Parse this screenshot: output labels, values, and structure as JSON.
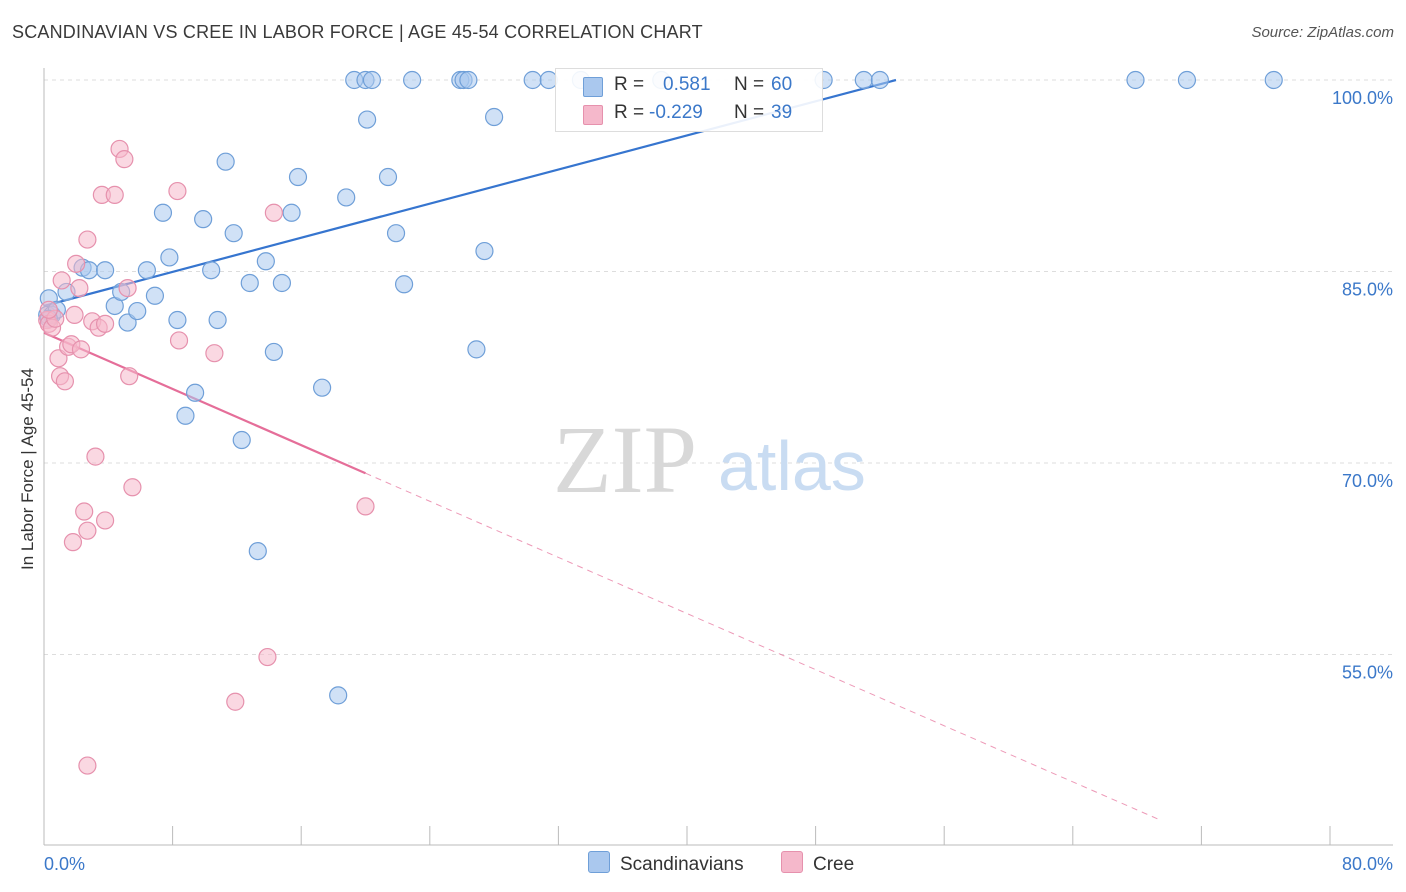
{
  "title": "SCANDINAVIAN VS CREE IN LABOR FORCE | AGE 45-54 CORRELATION CHART",
  "source": "Source: ZipAtlas.com",
  "watermark": {
    "zip": "ZIP",
    "atlas": "atlas"
  },
  "colors": {
    "blue_fill": "#aac8ee",
    "blue_stroke": "#6f9fd8",
    "blue_line": "#3675cf",
    "pink_fill": "#f5b8cb",
    "pink_stroke": "#e691ad",
    "pink_line": "#e56e99",
    "axis_text": "#3b78c9",
    "grid": "#dddddd"
  },
  "legend": {
    "rows": [
      {
        "r_label": "R =",
        "r_value": "0.581",
        "n_label": "N =",
        "n_value": "60"
      },
      {
        "r_label": "R =",
        "r_value": "-0.229",
        "n_label": "N =",
        "n_value": "39"
      }
    ]
  },
  "chart_data": {
    "type": "scatter",
    "xlabel": "",
    "ylabel": "In Labor Force | Age 45-54",
    "xlim": [
      0,
      80
    ],
    "ylim": [
      42,
      100
    ],
    "x_tick_labels": [
      "0.0%",
      "80.0%"
    ],
    "y_ticks": [
      55,
      70,
      85,
      100
    ],
    "y_tick_labels": [
      "55.0%",
      "70.0%",
      "85.0%",
      "100.0%"
    ],
    "grid": true,
    "legend_position": "top-center",
    "series": [
      {
        "name": "Scandinavians",
        "R": 0.581,
        "N": 60,
        "trend": {
          "x0": 0,
          "y0": 82.3,
          "x1": 53,
          "y1": 100.0
        },
        "points": [
          [
            0.2,
            81.6
          ],
          [
            0.3,
            82.9
          ],
          [
            0.5,
            81.6
          ],
          [
            0.8,
            82.0
          ],
          [
            0.3,
            81.3
          ],
          [
            1.4,
            83.4
          ],
          [
            2.4,
            85.3
          ],
          [
            2.8,
            85.1
          ],
          [
            3.8,
            85.1
          ],
          [
            4.4,
            82.3
          ],
          [
            4.8,
            83.4
          ],
          [
            5.2,
            81.0
          ],
          [
            5.8,
            81.9
          ],
          [
            6.4,
            85.1
          ],
          [
            6.9,
            83.1
          ],
          [
            7.4,
            89.6
          ],
          [
            7.8,
            86.1
          ],
          [
            8.3,
            81.2
          ],
          [
            8.8,
            73.7
          ],
          [
            9.4,
            75.5
          ],
          [
            9.9,
            89.1
          ],
          [
            10.4,
            85.1
          ],
          [
            10.8,
            81.2
          ],
          [
            11.3,
            93.6
          ],
          [
            11.8,
            88.0
          ],
          [
            12.3,
            71.8
          ],
          [
            12.8,
            84.1
          ],
          [
            13.3,
            63.1
          ],
          [
            13.8,
            85.8
          ],
          [
            14.3,
            78.7
          ],
          [
            14.8,
            84.1
          ],
          [
            15.4,
            89.6
          ],
          [
            15.8,
            92.4
          ],
          [
            17.3,
            75.9
          ],
          [
            18.3,
            51.8
          ],
          [
            18.8,
            90.8
          ],
          [
            19.3,
            100.0
          ],
          [
            20.0,
            100.0
          ],
          [
            20.1,
            96.9
          ],
          [
            20.4,
            100.0
          ],
          [
            21.4,
            92.4
          ],
          [
            21.9,
            88.0
          ],
          [
            22.4,
            84.0
          ],
          [
            22.9,
            100.0
          ],
          [
            25.9,
            100.0
          ],
          [
            26.1,
            100.0
          ],
          [
            26.4,
            100.0
          ],
          [
            26.9,
            78.9
          ],
          [
            27.4,
            86.6
          ],
          [
            28.0,
            97.1
          ],
          [
            30.4,
            100.0
          ],
          [
            31.4,
            100.0
          ],
          [
            33.4,
            100.0
          ],
          [
            38.4,
            100.0
          ],
          [
            48.5,
            100.0
          ],
          [
            51.0,
            100.0
          ],
          [
            52.0,
            100.0
          ],
          [
            67.9,
            100.0
          ],
          [
            71.1,
            100.0
          ],
          [
            76.5,
            100.0
          ]
        ]
      },
      {
        "name": "Cree",
        "R": -0.229,
        "N": 39,
        "trend": {
          "x0": 0,
          "y0": 80.2,
          "x1": 20,
          "y1": 69.2,
          "dash_x1": 69.5,
          "dash_y1": 42
        },
        "points": [
          [
            0.2,
            81.2
          ],
          [
            0.3,
            80.9
          ],
          [
            0.5,
            80.6
          ],
          [
            0.7,
            81.3
          ],
          [
            0.9,
            78.2
          ],
          [
            1.0,
            76.8
          ],
          [
            1.1,
            84.3
          ],
          [
            1.3,
            76.4
          ],
          [
            1.5,
            79.1
          ],
          [
            1.7,
            79.3
          ],
          [
            1.9,
            81.6
          ],
          [
            1.8,
            63.8
          ],
          [
            2.0,
            85.6
          ],
          [
            2.2,
            83.7
          ],
          [
            2.3,
            78.9
          ],
          [
            2.5,
            66.2
          ],
          [
            2.7,
            64.7
          ],
          [
            2.7,
            46.3
          ],
          [
            2.7,
            87.5
          ],
          [
            3.0,
            81.1
          ],
          [
            3.2,
            70.5
          ],
          [
            3.4,
            80.6
          ],
          [
            3.6,
            91.0
          ],
          [
            3.8,
            65.5
          ],
          [
            3.8,
            80.9
          ],
          [
            4.4,
            91.0
          ],
          [
            4.7,
            94.6
          ],
          [
            5.0,
            93.8
          ],
          [
            5.2,
            83.7
          ],
          [
            5.3,
            76.8
          ],
          [
            5.5,
            68.1
          ],
          [
            8.3,
            91.3
          ],
          [
            8.4,
            79.6
          ],
          [
            10.6,
            78.6
          ],
          [
            11.9,
            51.3
          ],
          [
            13.9,
            54.8
          ],
          [
            14.3,
            89.6
          ],
          [
            20.0,
            66.6
          ],
          [
            0.3,
            82.0
          ]
        ]
      }
    ]
  }
}
